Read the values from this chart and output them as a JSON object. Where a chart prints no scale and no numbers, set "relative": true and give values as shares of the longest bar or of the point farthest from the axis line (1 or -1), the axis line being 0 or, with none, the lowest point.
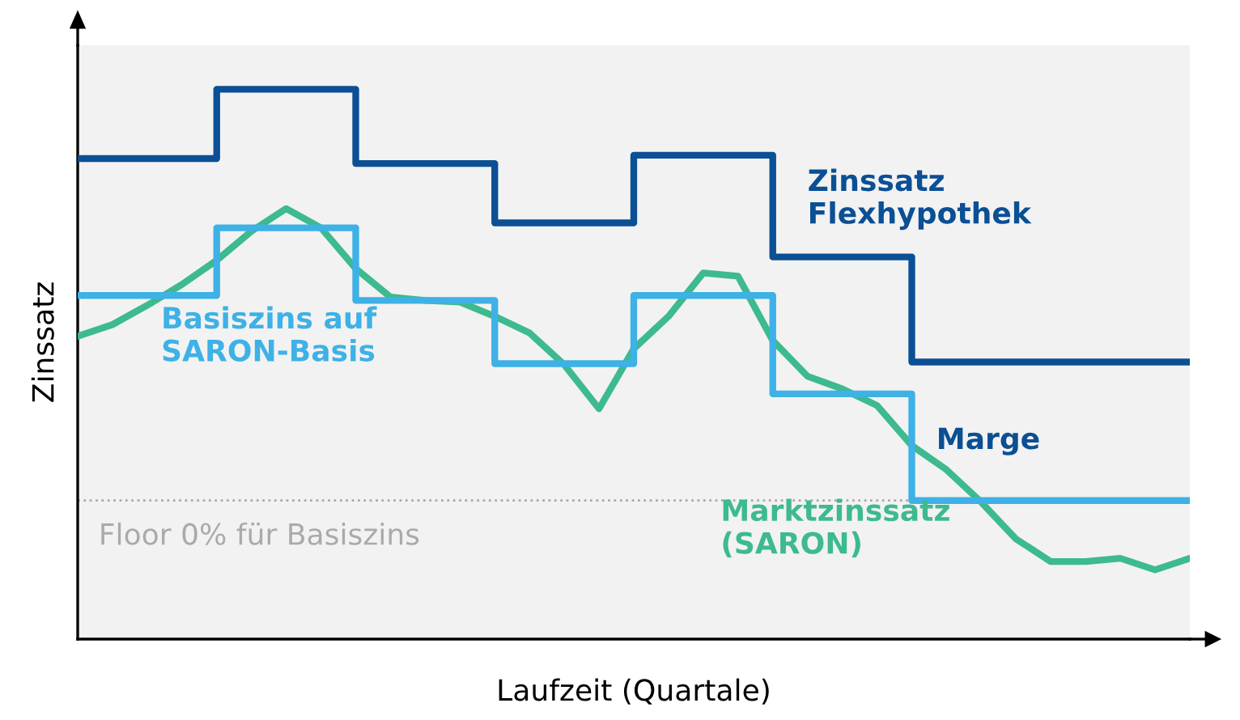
{
  "chart_data": {
    "type": "step",
    "relative": true,
    "xlabel": "Laufzeit (Quartale)",
    "ylabel": "Zinssatz",
    "categories": [
      null,
      null,
      null,
      null,
      null,
      null,
      null,
      null,
      null,
      null,
      null,
      null,
      null,
      null,
      null,
      null,
      null,
      null,
      null,
      null,
      null,
      null,
      null,
      null,
      null,
      null,
      null,
      null,
      null,
      null,
      null,
      null,
      null
    ],
    "series": [
      {
        "name": "Zinssatz\nFlexhypothek",
        "color": "#0b4f94",
        "values": [
          0.874,
          0.874,
          0.874,
          0.874,
          1.0,
          1.0,
          1.0,
          1.0,
          0.865,
          0.865,
          0.865,
          0.865,
          0.757,
          0.757,
          0.757,
          0.757,
          0.88,
          0.88,
          0.88,
          0.88,
          0.695,
          0.695,
          0.695,
          0.695,
          0.504,
          0.504,
          0.504,
          0.504,
          0.504,
          0.504,
          0.504,
          0.504,
          0.504
        ]
      },
      {
        "name": "Basiszins auf\nSARON-Basis",
        "color": "#3eb1e6",
        "values": [
          0.625,
          0.625,
          0.625,
          0.625,
          0.748,
          0.748,
          0.748,
          0.748,
          0.616,
          0.616,
          0.616,
          0.616,
          0.501,
          0.501,
          0.501,
          0.501,
          0.625,
          0.625,
          0.625,
          0.625,
          0.446,
          0.446,
          0.446,
          0.446,
          0.252,
          0.252,
          0.252,
          0.252,
          0.252,
          0.252,
          0.252,
          0.252,
          0.252
        ]
      },
      {
        "name": "Marktzinssatz\n(SARON)",
        "type": "line",
        "color": "#3dba8e",
        "values": [
          0.551,
          0.572,
          0.607,
          0.645,
          0.689,
          0.742,
          0.783,
          0.748,
          0.674,
          0.622,
          0.616,
          0.613,
          0.587,
          0.557,
          0.499,
          0.419,
          0.528,
          0.587,
          0.666,
          0.66,
          0.543,
          0.478,
          0.455,
          0.425,
          0.352,
          0.308,
          0.249,
          0.182,
          0.141,
          0.141,
          0.147,
          0.126,
          0.147
        ]
      }
    ],
    "ref_lines": [
      {
        "axis": "y",
        "value": 0.252,
        "label": "Floor 0% für Basiszins",
        "color": "#aaaaaa",
        "line_style": "dotted"
      }
    ],
    "annotations": [
      "Marge"
    ],
    "grid": false,
    "legend": false,
    "marker": "none"
  }
}
